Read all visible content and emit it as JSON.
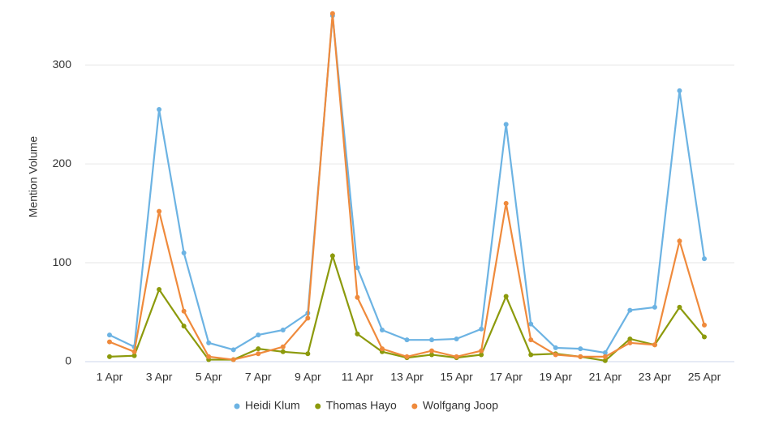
{
  "chart_data": {
    "type": "line",
    "y_label": "Mention Volume",
    "categories": [
      "1 Apr",
      null,
      "3 Apr",
      null,
      "5 Apr",
      null,
      "7 Apr",
      null,
      "9 Apr",
      null,
      "11 Apr",
      null,
      "13 Apr",
      null,
      "15 Apr",
      null,
      "17 Apr",
      null,
      "19 Apr",
      null,
      "21 Apr",
      null,
      "23 Apr",
      null,
      "25 Apr"
    ],
    "series": [
      {
        "name": "Heidi Klum",
        "color": "#6cb3e3",
        "values": [
          27,
          15,
          255,
          110,
          19,
          12,
          27,
          32,
          49,
          350,
          95,
          32,
          22,
          22,
          23,
          33,
          240,
          38,
          14,
          13,
          9,
          52,
          55,
          274,
          104
        ]
      },
      {
        "name": "Thomas Hayo",
        "color": "#8c9a0c",
        "values": [
          5,
          6,
          73,
          36,
          2,
          2,
          13,
          10,
          8,
          107,
          28,
          10,
          4,
          7,
          4,
          7,
          66,
          7,
          8,
          5,
          1,
          23,
          17,
          55,
          25
        ]
      },
      {
        "name": "Wolfgang Joop",
        "color": "#ef8a3c",
        "values": [
          20,
          10,
          152,
          51,
          5,
          2,
          8,
          15,
          44,
          352,
          65,
          13,
          5,
          11,
          5,
          11,
          160,
          22,
          7,
          5,
          5,
          19,
          17,
          122,
          37
        ]
      }
    ],
    "ylim": [
      0,
      360
    ],
    "yticks": [
      0,
      100,
      200,
      300
    ],
    "grid": true,
    "legend": "bottom"
  }
}
